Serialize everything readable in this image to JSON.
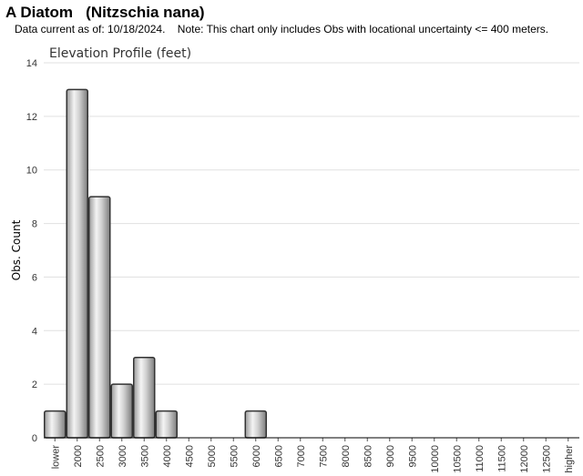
{
  "header": {
    "title": "A Diatom   (Nitzschia nana)",
    "note": "Data current as of: 10/18/2024.    Note: This chart only includes Obs with locational uncertainty <= 400 meters."
  },
  "chart_data": {
    "type": "bar",
    "title": "Elevation Profile (feet)",
    "xlabel": "",
    "ylabel": "Obs. Count",
    "ylim": [
      0,
      14
    ],
    "yticks": [
      "0",
      "2",
      "4",
      "6",
      "8",
      "10",
      "12",
      "14"
    ],
    "grid": true,
    "categories": [
      "lower",
      "2000",
      "2500",
      "3000",
      "3500",
      "4000",
      "4500",
      "5000",
      "5500",
      "6000",
      "6500",
      "7000",
      "7500",
      "8000",
      "8500",
      "9000",
      "9500",
      "10000",
      "10500",
      "11000",
      "11500",
      "12000",
      "12500",
      "higher"
    ],
    "values": [
      1,
      13,
      9,
      2,
      3,
      1,
      0,
      0,
      0,
      1,
      0,
      0,
      0,
      0,
      0,
      0,
      0,
      0,
      0,
      0,
      0,
      0,
      0,
      0
    ]
  },
  "colors": {
    "bar_edge": "#333333",
    "bar_light": "#f2f2f2",
    "bar_dark": "#8a8a8a",
    "grid": "#e0e0e0",
    "axis": "#000000"
  }
}
